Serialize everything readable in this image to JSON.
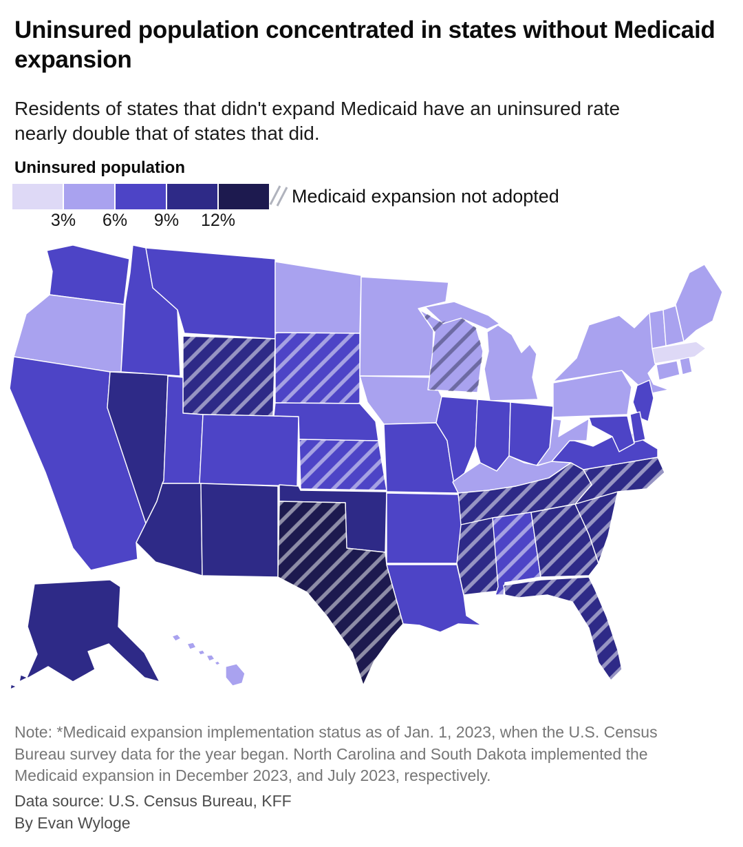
{
  "header": {
    "title": "Uninsured population concentrated in states without Medicaid expansion",
    "subtitle": "Residents of states that didn't expand Medicaid have an uninsured rate nearly double that of states that did."
  },
  "legend": {
    "title": "Uninsured population",
    "tick_labels": [
      "3%",
      "6%",
      "9%",
      "12%"
    ],
    "colors": [
      "#ded9f6",
      "#a9a2ef",
      "#4d44c6",
      "#2e2a87",
      "#1d1a4f"
    ],
    "bin_labels": [
      "<3%",
      "3-6%",
      "6-9%",
      "9-12%",
      "12%+"
    ],
    "hatch_label": "Medicaid expansion not adopted",
    "hatch_light_color": "#ffffff",
    "hatch_dark_color": "#3c3c64",
    "glyph_line_color": "#b0b3bd"
  },
  "footer": {
    "note": "Note: *Medicaid expansion implementation status as of Jan. 1, 2023, when the U.S. Census Bureau survey data for the year began. North Carolina and South Dakota implemented the Medicaid expansion in December 2023, and July 2023, respectively.",
    "source": "Data source: U.S. Census Bureau, KFF",
    "byline": "By Evan Wyloge"
  },
  "chart_data": {
    "type": "choropleth_map",
    "title": "Uninsured population concentrated in states without Medicaid expansion",
    "unit": "percent of population uninsured, binned by color",
    "bins": [
      "<3%",
      "3-6%",
      "6-9%",
      "9-12%",
      "12%+"
    ],
    "legend_position": "top-left",
    "hatch_meaning": "Medicaid expansion not adopted (as of Jan. 1, 2023)",
    "states": [
      {
        "id": "AL",
        "name": "Alabama",
        "bin": 3,
        "expansion_not_adopted": true
      },
      {
        "id": "AK",
        "name": "Alaska",
        "bin": 4,
        "expansion_not_adopted": false
      },
      {
        "id": "AZ",
        "name": "Arizona",
        "bin": 4,
        "expansion_not_adopted": false
      },
      {
        "id": "AR",
        "name": "Arkansas",
        "bin": 3,
        "expansion_not_adopted": false
      },
      {
        "id": "CA",
        "name": "California",
        "bin": 3,
        "expansion_not_adopted": false
      },
      {
        "id": "CO",
        "name": "Colorado",
        "bin": 3,
        "expansion_not_adopted": false
      },
      {
        "id": "CT",
        "name": "Connecticut",
        "bin": 2,
        "expansion_not_adopted": false
      },
      {
        "id": "DE",
        "name": "Delaware",
        "bin": 3,
        "expansion_not_adopted": false
      },
      {
        "id": "FL",
        "name": "Florida",
        "bin": 4,
        "expansion_not_adopted": true
      },
      {
        "id": "GA",
        "name": "Georgia",
        "bin": 4,
        "expansion_not_adopted": true
      },
      {
        "id": "HI",
        "name": "Hawaii",
        "bin": 2,
        "expansion_not_adopted": false
      },
      {
        "id": "ID",
        "name": "Idaho",
        "bin": 3,
        "expansion_not_adopted": false
      },
      {
        "id": "IL",
        "name": "Illinois",
        "bin": 3,
        "expansion_not_adopted": false
      },
      {
        "id": "IN",
        "name": "Indiana",
        "bin": 3,
        "expansion_not_adopted": false
      },
      {
        "id": "IA",
        "name": "Iowa",
        "bin": 2,
        "expansion_not_adopted": false
      },
      {
        "id": "KS",
        "name": "Kansas",
        "bin": 3,
        "expansion_not_adopted": true
      },
      {
        "id": "KY",
        "name": "Kentucky",
        "bin": 2,
        "expansion_not_adopted": false
      },
      {
        "id": "LA",
        "name": "Louisiana",
        "bin": 3,
        "expansion_not_adopted": false
      },
      {
        "id": "ME",
        "name": "Maine",
        "bin": 2,
        "expansion_not_adopted": false
      },
      {
        "id": "MD",
        "name": "Maryland",
        "bin": 3,
        "expansion_not_adopted": false
      },
      {
        "id": "MA",
        "name": "Massachusetts",
        "bin": 1,
        "expansion_not_adopted": false
      },
      {
        "id": "MI",
        "name": "Michigan",
        "bin": 2,
        "expansion_not_adopted": false
      },
      {
        "id": "MN",
        "name": "Minnesota",
        "bin": 2,
        "expansion_not_adopted": false
      },
      {
        "id": "MS",
        "name": "Mississippi",
        "bin": 4,
        "expansion_not_adopted": true
      },
      {
        "id": "MO",
        "name": "Missouri",
        "bin": 3,
        "expansion_not_adopted": false
      },
      {
        "id": "MT",
        "name": "Montana",
        "bin": 3,
        "expansion_not_adopted": false
      },
      {
        "id": "NE",
        "name": "Nebraska",
        "bin": 3,
        "expansion_not_adopted": false
      },
      {
        "id": "NV",
        "name": "Nevada",
        "bin": 4,
        "expansion_not_adopted": false
      },
      {
        "id": "NH",
        "name": "New Hampshire",
        "bin": 2,
        "expansion_not_adopted": false
      },
      {
        "id": "NJ",
        "name": "New Jersey",
        "bin": 3,
        "expansion_not_adopted": false
      },
      {
        "id": "NM",
        "name": "New Mexico",
        "bin": 4,
        "expansion_not_adopted": false
      },
      {
        "id": "NY",
        "name": "New York",
        "bin": 2,
        "expansion_not_adopted": false
      },
      {
        "id": "NC",
        "name": "North Carolina",
        "bin": 4,
        "expansion_not_adopted": true
      },
      {
        "id": "ND",
        "name": "North Dakota",
        "bin": 2,
        "expansion_not_adopted": false
      },
      {
        "id": "OH",
        "name": "Ohio",
        "bin": 3,
        "expansion_not_adopted": false
      },
      {
        "id": "OK",
        "name": "Oklahoma",
        "bin": 4,
        "expansion_not_adopted": false
      },
      {
        "id": "OR",
        "name": "Oregon",
        "bin": 2,
        "expansion_not_adopted": false
      },
      {
        "id": "PA",
        "name": "Pennsylvania",
        "bin": 2,
        "expansion_not_adopted": false
      },
      {
        "id": "RI",
        "name": "Rhode Island",
        "bin": 2,
        "expansion_not_adopted": false
      },
      {
        "id": "SC",
        "name": "South Carolina",
        "bin": 4,
        "expansion_not_adopted": true
      },
      {
        "id": "SD",
        "name": "South Dakota",
        "bin": 3,
        "expansion_not_adopted": true
      },
      {
        "id": "TN",
        "name": "Tennessee",
        "bin": 4,
        "expansion_not_adopted": true
      },
      {
        "id": "TX",
        "name": "Texas",
        "bin": 5,
        "expansion_not_adopted": true
      },
      {
        "id": "UT",
        "name": "Utah",
        "bin": 3,
        "expansion_not_adopted": false
      },
      {
        "id": "VT",
        "name": "Vermont",
        "bin": 2,
        "expansion_not_adopted": false
      },
      {
        "id": "VA",
        "name": "Virginia",
        "bin": 3,
        "expansion_not_adopted": false
      },
      {
        "id": "WA",
        "name": "Washington",
        "bin": 3,
        "expansion_not_adopted": false
      },
      {
        "id": "WV",
        "name": "West Virginia",
        "bin": 2,
        "expansion_not_adopted": false
      },
      {
        "id": "WI",
        "name": "Wisconsin",
        "bin": 2,
        "expansion_not_adopted": true
      },
      {
        "id": "WY",
        "name": "Wyoming",
        "bin": 4,
        "expansion_not_adopted": true
      }
    ]
  }
}
